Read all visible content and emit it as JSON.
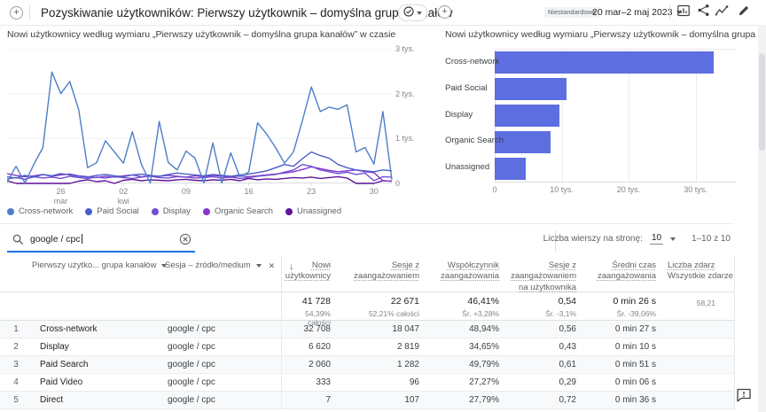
{
  "header": {
    "title": "Pozyskiwanie użytkowników: Pierwszy użytkownik – domyślna grupa kanałów",
    "badge": "Niestandardowe",
    "date_range": "20 mar–2 maj 2023"
  },
  "toolbar": {
    "search_value": "google / cpc",
    "rows_per_page_label": "Liczba wierszy na stronę:",
    "rows_per_page_value": "10",
    "pagination": "1–10 z 10"
  },
  "chart_data": [
    {
      "type": "line",
      "title": "Nowi użytkownicy według wymiaru „Pierwszy użytkownik – domyślna grupa kanałów” w czasie",
      "ylim": [
        0,
        3000
      ],
      "y_ticks": [
        {
          "label": "3 tys.",
          "value": 3000
        },
        {
          "label": "2 tys.",
          "value": 2000
        },
        {
          "label": "1 tys.",
          "value": 1000
        },
        {
          "label": "0",
          "value": 0
        }
      ],
      "x_tick_labels": [
        [
          "26",
          "mar"
        ],
        [
          "02",
          "kwi"
        ],
        [
          "09",
          ""
        ],
        [
          "16",
          ""
        ],
        [
          "23",
          ""
        ],
        [
          "30",
          ""
        ]
      ],
      "x_tick_day_index": [
        6,
        13,
        20,
        27,
        34,
        41
      ],
      "series": [
        {
          "name": "Cross-network",
          "color": "#4e7ec9",
          "values": [
            30,
            380,
            10,
            430,
            800,
            2480,
            2000,
            2270,
            1650,
            350,
            460,
            950,
            700,
            450,
            1150,
            430,
            10,
            1380,
            470,
            300,
            720,
            560,
            10,
            900,
            10,
            680,
            150,
            250,
            1350,
            1100,
            800,
            450,
            700,
            1400,
            2150,
            1600,
            1700,
            1650,
            1750,
            700,
            800,
            430,
            1600,
            80
          ]
        },
        {
          "name": "Paid Social",
          "color": "#4a5fc9",
          "values": [
            150,
            120,
            180,
            140,
            200,
            170,
            220,
            190,
            160,
            140,
            180,
            200,
            170,
            150,
            190,
            210,
            180,
            160,
            200,
            230,
            210,
            190,
            170,
            200,
            180,
            160,
            190,
            210,
            240,
            280,
            350,
            420,
            380,
            550,
            700,
            620,
            560,
            420,
            350,
            300,
            280,
            260,
            300,
            280
          ]
        },
        {
          "name": "Display",
          "color": "#6e4fd0",
          "values": [
            100,
            130,
            90,
            150,
            120,
            140,
            110,
            160,
            130,
            110,
            140,
            120,
            150,
            130,
            110,
            140,
            160,
            130,
            120,
            150,
            140,
            120,
            130,
            150,
            120,
            140,
            110,
            130,
            160,
            180,
            200,
            250,
            300,
            420,
            380,
            300,
            260,
            220,
            250,
            200,
            230,
            60,
            150,
            140
          ]
        },
        {
          "name": "Organic Search",
          "color": "#8836cf",
          "values": [
            220,
            180,
            150,
            170,
            200,
            160,
            190,
            210,
            170,
            150,
            130,
            160,
            140,
            170,
            190,
            150,
            170,
            160,
            180,
            160,
            140,
            170,
            150,
            180,
            160,
            140,
            170,
            150,
            170,
            190,
            210,
            230,
            260,
            310,
            370,
            330,
            290,
            260,
            280,
            300,
            260,
            240,
            60,
            50
          ]
        },
        {
          "name": "Unassigned",
          "color": "#611499",
          "values": [
            60,
            0,
            0,
            0,
            0,
            0,
            0,
            0,
            50,
            80,
            40,
            60,
            0,
            70,
            90,
            60,
            80,
            70,
            60,
            80,
            90,
            70,
            60,
            80,
            70,
            90,
            60,
            110,
            80,
            100,
            90,
            110,
            130,
            120,
            140,
            110,
            130,
            150,
            120,
            0,
            0,
            0,
            60,
            50
          ]
        }
      ]
    },
    {
      "type": "bar",
      "title": "Nowi użytkownicy według wymiaru „Pierwszy użytkownik – domyślna grupa kanałów”",
      "categories": [
        "Cross-network",
        "Paid Social",
        "Display",
        "Organic Search",
        "Unassigned"
      ],
      "values": [
        32700,
        10700,
        9700,
        8300,
        4600
      ],
      "xlim": [
        0,
        34700
      ],
      "x_ticks": [
        "0",
        "10 tys.",
        "20 tys.",
        "30 tys."
      ],
      "bar_color": "#5c6ee0"
    }
  ],
  "table": {
    "dim1_header": "Pierwszy użytko... grupa kanałów",
    "dim2_header": "Sesja – źródło/medium",
    "metrics": [
      "Nowi użytkownicy",
      "Sesje z zaangażowaniem",
      "Współczynnik zaangażowania",
      "Sesje z zaangażowaniem na użytkownika",
      "Średni czas zaangażowania",
      "Liczba zdarz"
    ],
    "last_metric_sub": "Wszystkie zdarze",
    "totals": [
      {
        "value": "41 728",
        "sub": "54,39% całości"
      },
      {
        "value": "22 671",
        "sub": "52,21% całości"
      },
      {
        "value": "46,41%",
        "sub": "Śr. +3,28%"
      },
      {
        "value": "0,54",
        "sub": "Śr. -3,1%"
      },
      {
        "value": "0 min 26 s",
        "sub": "Śr. -39,06%"
      },
      {
        "value": "",
        "sub": "58,21"
      }
    ],
    "rows": [
      {
        "num": "1",
        "channel": "Cross-network",
        "source": "google / cpc",
        "values": [
          "32 708",
          "18 047",
          "48,94%",
          "0,56",
          "0 min 27 s"
        ]
      },
      {
        "num": "2",
        "channel": "Display",
        "source": "google / cpc",
        "values": [
          "6 620",
          "2 819",
          "34,65%",
          "0,43",
          "0 min 10 s"
        ]
      },
      {
        "num": "3",
        "channel": "Paid Search",
        "source": "google / cpc",
        "values": [
          "2 060",
          "1 282",
          "49,79%",
          "0,61",
          "0 min 51 s"
        ]
      },
      {
        "num": "4",
        "channel": "Paid Video",
        "source": "google / cpc",
        "values": [
          "333",
          "96",
          "27,27%",
          "0,29",
          "0 min 06 s"
        ]
      },
      {
        "num": "5",
        "channel": "Direct",
        "source": "google / cpc",
        "values": [
          "7",
          "107",
          "27,79%",
          "0,72",
          "0 min 36 s"
        ]
      }
    ]
  }
}
